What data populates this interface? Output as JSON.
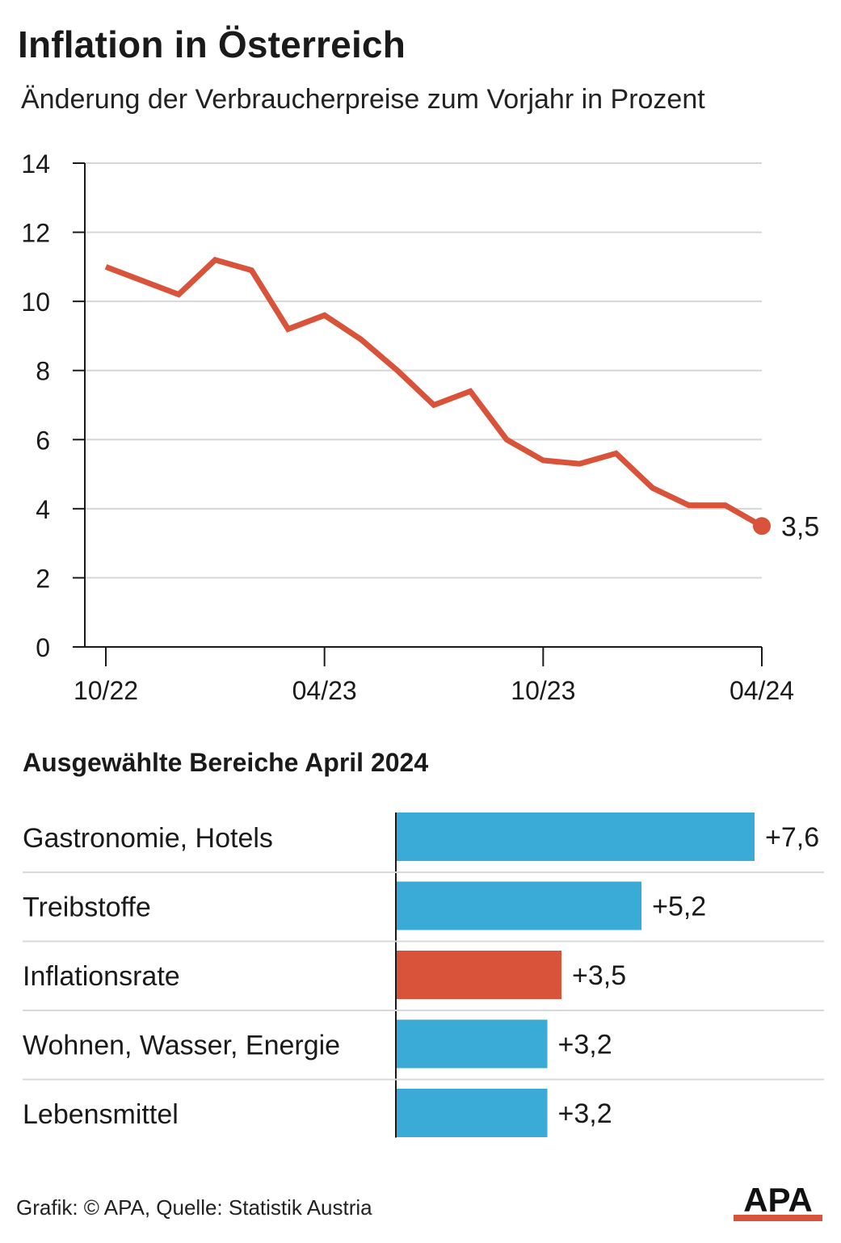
{
  "header": {
    "title": "Inflation in Österreich",
    "subtitle": "Änderung der Verbraucherpreise zum Vorjahr in Prozent"
  },
  "colors": {
    "line": "#d9533a",
    "bar": "#3aaad6",
    "highlight": "#d9533a",
    "grid": "#d6d6d6"
  },
  "chart_data": [
    {
      "type": "line",
      "x": [
        "10/22",
        "11/22",
        "12/22",
        "01/23",
        "02/23",
        "03/23",
        "04/23",
        "05/23",
        "06/23",
        "07/23",
        "08/23",
        "09/23",
        "10/23",
        "11/23",
        "12/23",
        "01/24",
        "02/24",
        "03/24",
        "04/24"
      ],
      "series": [
        {
          "values": [
            11.0,
            10.6,
            10.2,
            11.2,
            10.9,
            9.2,
            9.6,
            8.9,
            8.0,
            7.0,
            7.4,
            6.0,
            5.4,
            5.3,
            5.6,
            4.6,
            4.1,
            4.1,
            3.5
          ]
        }
      ],
      "x_tick_labels": [
        "10/22",
        "04/23",
        "10/23",
        "04/24"
      ],
      "y_ticks": [
        "0",
        "2",
        "4",
        "6",
        "8",
        "10",
        "12",
        "14"
      ],
      "ylim": [
        0,
        14
      ],
      "grid": true,
      "end_label": "3,5"
    },
    {
      "type": "bar",
      "title": "Ausgewählte Bereiche April 2024",
      "categories": [
        "Gastronomie, Hotels",
        "Treibstoffe",
        "Inflationsrate",
        "Wohnen, Wasser, Energie",
        "Lebensmittel"
      ],
      "values": [
        7.6,
        5.2,
        3.5,
        3.2,
        3.2
      ],
      "value_labels": [
        "+7,6",
        "+5,2",
        "+3,5",
        "+3,2",
        "+3,2"
      ],
      "highlight": "Inflationsrate"
    }
  ],
  "footer": {
    "source": "Grafik: © APA, Quelle: Statistik Austria",
    "logo_text": "APA"
  }
}
